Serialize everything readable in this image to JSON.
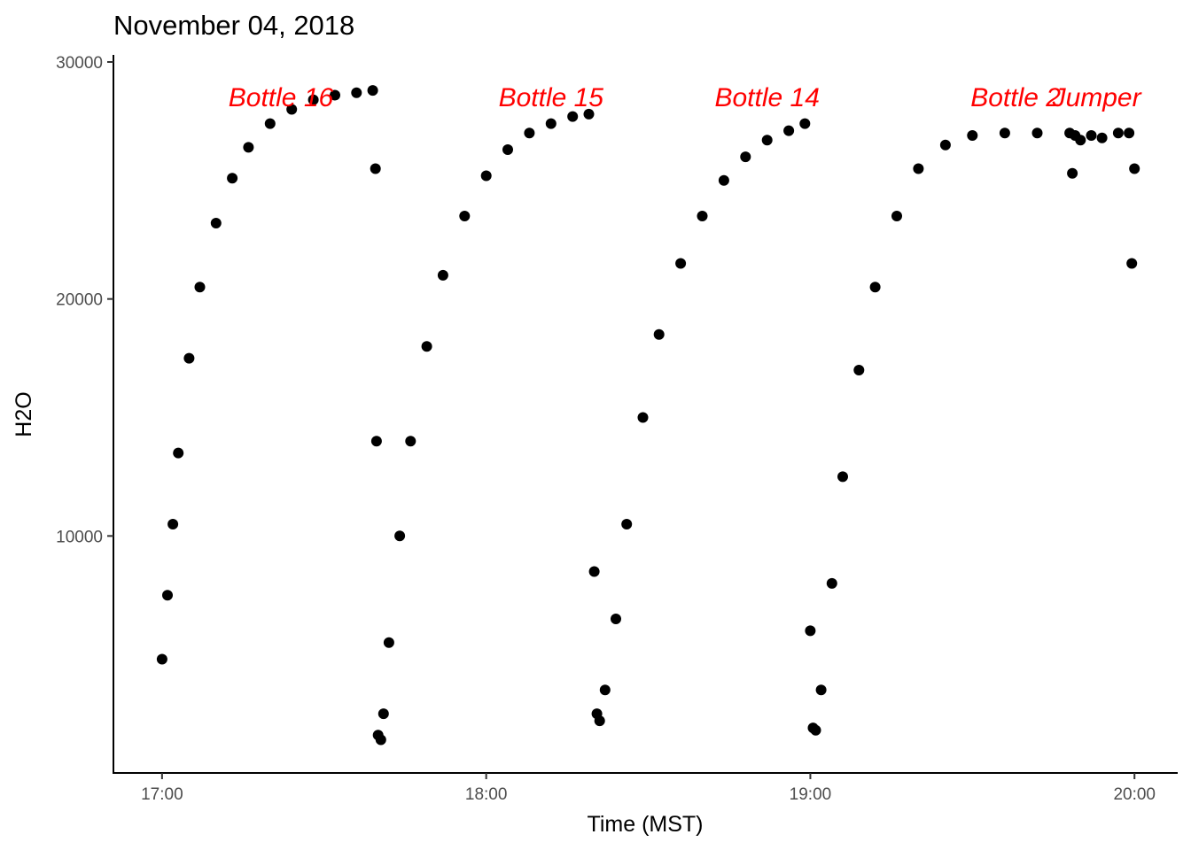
{
  "chart_data": {
    "type": "scatter",
    "title": "November 04, 2018",
    "xlabel": "Time (MST)",
    "ylabel": "H2O",
    "xlim": [
      "16:51",
      "20:08"
    ],
    "ylim": [
      0,
      30000
    ],
    "x_ticks": [
      "17:00",
      "18:00",
      "19:00",
      "20:00"
    ],
    "y_ticks": [
      10000,
      20000,
      30000
    ],
    "grid": false,
    "legend": "none",
    "point_color": "#000000",
    "annotation_color": "#ff0000",
    "annotations": [
      {
        "label": "Bottle 16",
        "x": "17:22",
        "y": 28500
      },
      {
        "label": "Bottle 15",
        "x": "18:12",
        "y": 28500
      },
      {
        "label": "Bottle 14",
        "x": "18:52",
        "y": 28500
      },
      {
        "label": "Bottle 2",
        "x": "19:38",
        "y": 28500
      },
      {
        "label": "Jumper",
        "x": "19:53",
        "y": 28500
      }
    ],
    "series": [
      {
        "x": [
          "17:00",
          "17:01",
          "17:02",
          "17:03",
          "17:05",
          "17:07",
          "17:10",
          "17:13",
          "17:16",
          "17:20",
          "17:24",
          "17:28",
          "17:32",
          "17:36",
          "17:39",
          "17:39.5",
          "17:39.7",
          "17:40",
          "17:40.5",
          "17:41",
          "17:42",
          "17:44",
          "17:46",
          "17:49",
          "17:52",
          "17:56",
          "18:00",
          "18:04",
          "18:08",
          "18:12",
          "18:16",
          "18:19",
          "18:20",
          "18:20.5",
          "18:21",
          "18:22",
          "18:24",
          "18:26",
          "18:29",
          "18:32",
          "18:36",
          "18:40",
          "18:44",
          "18:48",
          "18:52",
          "18:56",
          "18:59",
          "19:00",
          "19:00.5",
          "19:01",
          "19:02",
          "19:04",
          "19:06",
          "19:09",
          "19:12",
          "19:16",
          "19:20",
          "19:25",
          "19:30",
          "19:36",
          "19:42",
          "19:48",
          "19:48.5",
          "19:49",
          "19:50",
          "19:52",
          "19:54",
          "19:57",
          "19:59",
          "19:59.5",
          "20:00"
        ],
        "y": [
          4800,
          7500,
          10500,
          13500,
          17500,
          20500,
          23200,
          25100,
          26400,
          27400,
          28000,
          28400,
          28600,
          28700,
          28800,
          25500,
          14000,
          1600,
          1400,
          2500,
          5500,
          10000,
          14000,
          18000,
          21000,
          23500,
          25200,
          26300,
          27000,
          27400,
          27700,
          27800,
          8500,
          2500,
          2200,
          3500,
          6500,
          10500,
          15000,
          18500,
          21500,
          23500,
          25000,
          26000,
          26700,
          27100,
          27400,
          6000,
          1900,
          1800,
          3500,
          8000,
          12500,
          17000,
          20500,
          23500,
          25500,
          26500,
          26900,
          27000,
          27000,
          27000,
          25300,
          26900,
          26700,
          26900,
          26800,
          27000,
          27000,
          21500,
          25500
        ]
      }
    ]
  }
}
